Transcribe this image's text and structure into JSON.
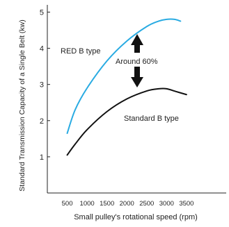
{
  "chart_data": {
    "type": "line",
    "xlabel": "Small pulley's rotational speed (rpm)",
    "ylabel": "Standard Transmission Capacity of a Single Belt (kw)",
    "x_ticks": [
      500,
      1000,
      1500,
      2000,
      2500,
      3000,
      3500
    ],
    "y_ticks": [
      1,
      2,
      3,
      4,
      5
    ],
    "xlim": [
      0,
      4500
    ],
    "ylim": [
      0,
      5.2
    ],
    "grid": false,
    "series": [
      {
        "name": "RED B type",
        "color": "#29abe2",
        "points": [
          [
            500,
            1.65
          ],
          [
            700,
            2.3
          ],
          [
            1000,
            2.9
          ],
          [
            1500,
            3.65
          ],
          [
            2000,
            4.2
          ],
          [
            2500,
            4.6
          ],
          [
            2800,
            4.75
          ],
          [
            3000,
            4.8
          ],
          [
            3200,
            4.8
          ],
          [
            3350,
            4.75
          ]
        ]
      },
      {
        "name": "Standard B type",
        "color": "#111111",
        "points": [
          [
            500,
            1.05
          ],
          [
            700,
            1.35
          ],
          [
            1000,
            1.75
          ],
          [
            1500,
            2.25
          ],
          [
            2000,
            2.6
          ],
          [
            2500,
            2.82
          ],
          [
            2800,
            2.88
          ],
          [
            3000,
            2.88
          ],
          [
            3250,
            2.8
          ],
          [
            3500,
            2.72
          ]
        ]
      }
    ],
    "annotations": [
      {
        "text": "RED B type"
      },
      {
        "text": "Standard B type"
      },
      {
        "text": "Around 60%"
      }
    ]
  }
}
